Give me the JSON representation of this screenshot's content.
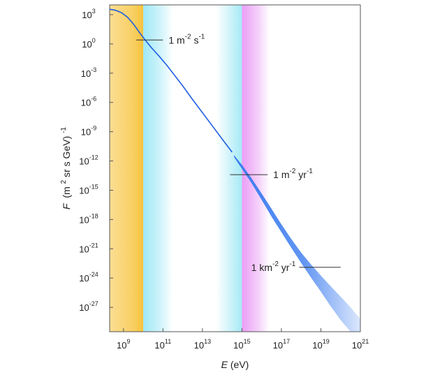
{
  "chart_data": {
    "type": "line",
    "title": "",
    "xlabel": "E (eV)",
    "xlabel_var": "E",
    "xlabel_unit": "(eV)",
    "ylabel": "F (m² sr s GeV)⁻¹",
    "ylabel_var": "F",
    "ylabel_unit_parts": [
      "(m",
      "2",
      " sr s GeV)",
      "-1"
    ],
    "x_scale": "log",
    "y_scale": "log",
    "x_exp_range": [
      8.3,
      21
    ],
    "y_exp_range": [
      -29.5,
      4
    ],
    "x_ticks": [
      {
        "base": "10",
        "exp": "9",
        "value_exp": 9
      },
      {
        "base": "10",
        "exp": "11",
        "value_exp": 11
      },
      {
        "base": "10",
        "exp": "13",
        "value_exp": 13
      },
      {
        "base": "10",
        "exp": "15",
        "value_exp": 15
      },
      {
        "base": "10",
        "exp": "17",
        "value_exp": 17
      },
      {
        "base": "10",
        "exp": "19",
        "value_exp": 19
      },
      {
        "base": "10",
        "exp": "21",
        "value_exp": 21
      }
    ],
    "y_ticks": [
      {
        "base": "10",
        "exp": "3",
        "value_exp": 3
      },
      {
        "base": "10",
        "exp": "0",
        "value_exp": 0
      },
      {
        "base": "10",
        "exp": "-3",
        "value_exp": -3
      },
      {
        "base": "10",
        "exp": "-6",
        "value_exp": -6
      },
      {
        "base": "10",
        "exp": "-9",
        "value_exp": -9
      },
      {
        "base": "10",
        "exp": "-12",
        "value_exp": -12
      },
      {
        "base": "10",
        "exp": "-15",
        "value_exp": -15
      },
      {
        "base": "10",
        "exp": "-18",
        "value_exp": -18
      },
      {
        "base": "10",
        "exp": "-21",
        "value_exp": -21
      },
      {
        "base": "10",
        "exp": "-24",
        "value_exp": -24
      },
      {
        "base": "10",
        "exp": "-27",
        "value_exp": -27
      }
    ],
    "series": [
      {
        "color": "#1f5fe0",
        "points_log": [
          [
            8.3,
            3.55
          ],
          [
            8.6,
            3.45
          ],
          [
            8.9,
            3.2
          ],
          [
            9.2,
            2.75
          ],
          [
            9.5,
            2.05
          ],
          [
            9.8,
            1.2
          ],
          [
            10.1,
            0.4
          ],
          [
            10.4,
            -0.35
          ],
          [
            10.8,
            -1.25
          ],
          [
            11.2,
            -2.2
          ],
          [
            11.6,
            -3.25
          ],
          [
            12.0,
            -4.3
          ],
          [
            12.5,
            -5.7
          ],
          [
            13.0,
            -7.05
          ],
          [
            13.5,
            -8.4
          ],
          [
            14.0,
            -9.75
          ],
          [
            14.5,
            -11.1
          ],
          [
            15.0,
            -12.5
          ],
          [
            15.5,
            -14.0
          ],
          [
            16.0,
            -15.65
          ],
          [
            16.5,
            -17.3
          ],
          [
            17.0,
            -18.9
          ],
          [
            17.5,
            -20.45
          ],
          [
            18.0,
            -21.95
          ],
          [
            18.5,
            -23.3
          ],
          [
            19.0,
            -24.6
          ],
          [
            19.5,
            -25.9
          ],
          [
            20.0,
            -27.1
          ],
          [
            20.5,
            -28.4
          ],
          [
            21.0,
            -29.7
          ]
        ]
      }
    ],
    "uncertainty_band": {
      "color": "#3a7bef",
      "start_exp": 14.6,
      "upper_log": [
        [
          14.6,
          -11.4
        ],
        [
          15.0,
          -12.4
        ],
        [
          15.5,
          -13.8
        ],
        [
          16.0,
          -15.35
        ],
        [
          16.5,
          -16.9
        ],
        [
          17.0,
          -18.5
        ],
        [
          17.5,
          -20.0
        ],
        [
          18.0,
          -21.4
        ],
        [
          18.5,
          -22.6
        ],
        [
          19.0,
          -23.75
        ],
        [
          19.5,
          -24.85
        ],
        [
          20.0,
          -25.9
        ],
        [
          20.5,
          -27.0
        ],
        [
          21.0,
          -28.2
        ]
      ],
      "lower_log": [
        [
          14.6,
          -11.6
        ],
        [
          15.0,
          -12.8
        ],
        [
          15.5,
          -14.3
        ],
        [
          16.0,
          -16.0
        ],
        [
          16.5,
          -17.7
        ],
        [
          17.0,
          -19.3
        ],
        [
          17.5,
          -20.9
        ],
        [
          18.0,
          -22.45
        ],
        [
          18.5,
          -23.95
        ],
        [
          19.0,
          -25.4
        ],
        [
          19.5,
          -26.9
        ],
        [
          20.0,
          -28.3
        ],
        [
          20.5,
          -29.5
        ],
        [
          21.0,
          -29.5
        ]
      ]
    },
    "bands": [
      {
        "name": "solar",
        "color": "#f7c33c",
        "x_exp": [
          8.3,
          10.0
        ],
        "fade": "left-to-right-edge"
      },
      {
        "name": "galactic-low",
        "color": "#7fe0f2",
        "x_exp": [
          10.0,
          11.5
        ],
        "fade": "left-to-right"
      },
      {
        "name": "galactic-knee",
        "color": "#7fe0f2",
        "x_exp": [
          13.7,
          15.0
        ],
        "fade": "right-to-left"
      },
      {
        "name": "extragalactic",
        "color": "#e37cf2",
        "x_exp": [
          15.0,
          16.4
        ],
        "fade": "left-to-right"
      }
    ],
    "annotations": [
      {
        "name": "annotation-1-per-m2-s",
        "parts": [
          "1 m",
          "-2",
          " s",
          "-1"
        ],
        "line_x_exp": [
          9.65,
          11.0
        ],
        "line_y_exp": 0.4
      },
      {
        "name": "annotation-1-per-m2-yr",
        "parts": [
          "1 m",
          "-2",
          " yr",
          "-1"
        ],
        "line_x_exp": [
          14.4,
          16.3
        ],
        "line_y_exp": -13.4
      },
      {
        "name": "annotation-1-per-km2-yr",
        "parts": [
          "1 km",
          "-2",
          " yr",
          "-1"
        ],
        "line_x_exp": [
          17.9,
          20.0
        ],
        "line_y_exp": -22.9
      }
    ],
    "grid": false,
    "legend": "none"
  }
}
